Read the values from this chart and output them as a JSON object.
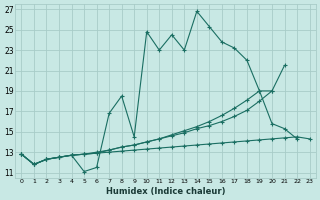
{
  "xlabel": "Humidex (Indice chaleur)",
  "bg_color": "#c8e8e4",
  "grid_color": "#a8ccc8",
  "line_color": "#1a6e62",
  "xlim": [
    -0.5,
    23.5
  ],
  "ylim": [
    10.5,
    27.5
  ],
  "xticks": [
    0,
    1,
    2,
    3,
    4,
    5,
    6,
    7,
    8,
    9,
    10,
    11,
    12,
    13,
    14,
    15,
    16,
    17,
    18,
    19,
    20,
    21,
    22,
    23
  ],
  "yticks": [
    11,
    13,
    15,
    17,
    19,
    21,
    23,
    25,
    27
  ],
  "lines": [
    {
      "x": [
        0,
        1,
        2,
        3,
        4,
        5,
        6,
        7,
        8,
        9,
        10,
        11,
        12,
        13,
        14,
        15,
        16,
        17,
        18,
        19,
        20,
        21,
        22
      ],
      "y": [
        12.8,
        11.8,
        12.3,
        12.5,
        12.7,
        11.1,
        11.5,
        16.8,
        18.5,
        14.5,
        24.8,
        23.0,
        24.5,
        23.0,
        26.8,
        25.3,
        23.8,
        23.2,
        22.0,
        19.0,
        15.8,
        15.3,
        14.3
      ]
    },
    {
      "x": [
        0,
        1,
        2,
        3,
        4,
        5,
        6,
        7,
        8,
        9,
        10,
        11,
        12,
        13,
        14,
        15,
        16,
        17,
        18,
        19,
        20,
        21
      ],
      "y": [
        12.8,
        11.8,
        12.3,
        12.5,
        12.7,
        12.8,
        13.0,
        13.2,
        13.5,
        13.7,
        14.0,
        14.3,
        14.7,
        15.1,
        15.5,
        16.0,
        16.6,
        17.3,
        18.1,
        19.0,
        19.0,
        21.5
      ]
    },
    {
      "x": [
        0,
        1,
        2,
        3,
        4,
        5,
        6,
        7,
        8,
        9,
        10,
        11,
        12,
        13,
        14,
        15,
        16,
        17,
        18,
        19,
        20
      ],
      "y": [
        12.8,
        11.8,
        12.3,
        12.5,
        12.7,
        12.8,
        12.9,
        13.2,
        13.5,
        13.7,
        14.0,
        14.3,
        14.6,
        14.9,
        15.3,
        15.6,
        16.0,
        16.5,
        17.1,
        18.0,
        19.0
      ]
    },
    {
      "x": [
        0,
        1,
        2,
        3,
        4,
        5,
        6,
        7,
        8,
        9,
        10,
        11,
        12,
        13,
        14,
        15,
        16,
        17,
        18,
        19,
        20,
        21,
        22,
        23
      ],
      "y": [
        12.8,
        11.8,
        12.3,
        12.5,
        12.7,
        12.8,
        12.9,
        13.0,
        13.1,
        13.2,
        13.3,
        13.4,
        13.5,
        13.6,
        13.7,
        13.8,
        13.9,
        14.0,
        14.1,
        14.2,
        14.3,
        14.4,
        14.5,
        14.3
      ]
    }
  ]
}
